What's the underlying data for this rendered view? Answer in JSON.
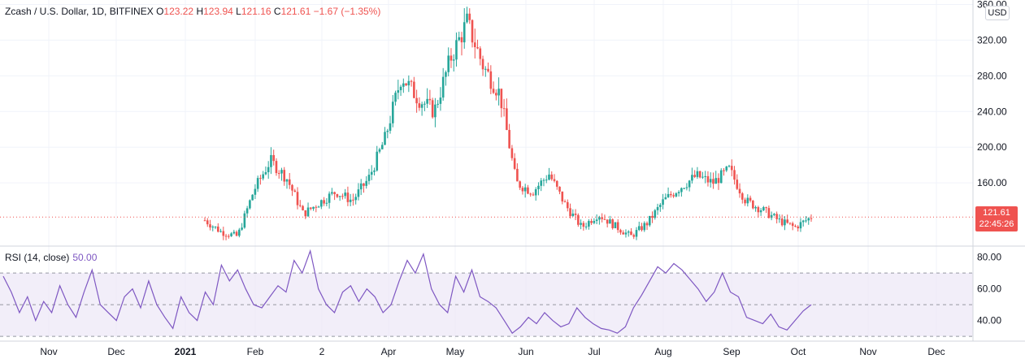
{
  "header": {
    "symbol": "Zcash / U.S. Dollar, 1D, BITFINEX",
    "open_label": "O",
    "open": "123.22",
    "high_label": "H",
    "high": "123.94",
    "low_label": "L",
    "low": "121.16",
    "close_label": "C",
    "close": "121.61",
    "change": "−1.67 (−1.35%)"
  },
  "currency": "USD",
  "last_price": "121.61",
  "countdown": "22:45:26",
  "rsi": {
    "title": "RSI (14, close)",
    "value": "50.00"
  },
  "colors": {
    "up": "#26a69a",
    "down": "#ef5350",
    "rsi": "#7e57c2",
    "rsi_band": "#ede7f6",
    "axis_text": "#131722"
  },
  "chart_data": [
    {
      "type": "candlestick",
      "title": "Zcash / U.S. Dollar, 1D, BITFINEX",
      "x_tick_labels": [
        "Nov",
        "Dec",
        "2021",
        "Feb",
        "2",
        "Apr",
        "May",
        "Jun",
        "Jul",
        "Aug",
        "Sep",
        "Oct",
        "Nov",
        "Dec"
      ],
      "y_ticks": [
        160,
        200,
        240,
        280,
        320,
        360
      ],
      "y_tick_labels": [
        "160.00",
        "200.00",
        "240.00",
        "280.00",
        "320.00",
        "360.00"
      ],
      "ylim": [
        90,
        365
      ],
      "series_close": [
        {
          "month": "Jan",
          "close": 118
        },
        {
          "month": "Jan",
          "close": 105
        },
        {
          "month": "Feb",
          "close": 100
        },
        {
          "month": "Feb",
          "close": 152
        },
        {
          "month": "Feb",
          "close": 185
        },
        {
          "month": "Feb",
          "close": 165
        },
        {
          "month": "Mar",
          "close": 125
        },
        {
          "month": "Mar",
          "close": 138
        },
        {
          "month": "Mar",
          "close": 150
        },
        {
          "month": "Mar",
          "close": 140
        },
        {
          "month": "Apr",
          "close": 165
        },
        {
          "month": "Apr",
          "close": 210
        },
        {
          "month": "Apr",
          "close": 280
        },
        {
          "month": "Apr",
          "close": 255
        },
        {
          "month": "Apr",
          "close": 240
        },
        {
          "month": "May",
          "close": 300
        },
        {
          "month": "May",
          "close": 340
        },
        {
          "month": "May",
          "close": 290
        },
        {
          "month": "May",
          "close": 260
        },
        {
          "month": "May",
          "close": 160
        },
        {
          "month": "Jun",
          "close": 150
        },
        {
          "month": "Jun",
          "close": 170
        },
        {
          "month": "Jun",
          "close": 135
        },
        {
          "month": "Jul",
          "close": 110
        },
        {
          "month": "Jul",
          "close": 125
        },
        {
          "month": "Jul",
          "close": 112
        },
        {
          "month": "Jul",
          "close": 100
        },
        {
          "month": "Aug",
          "close": 115
        },
        {
          "month": "Aug",
          "close": 140
        },
        {
          "month": "Aug",
          "close": 155
        },
        {
          "month": "Aug",
          "close": 168
        },
        {
          "month": "Sep",
          "close": 160
        },
        {
          "month": "Sep",
          "close": 175
        },
        {
          "month": "Sep",
          "close": 140
        },
        {
          "month": "Sep",
          "close": 130
        },
        {
          "month": "Sep",
          "close": 118
        },
        {
          "month": "Oct",
          "close": 110
        },
        {
          "month": "Oct",
          "close": 121.61
        }
      ]
    },
    {
      "type": "line",
      "title": "RSI (14, close)",
      "y_ticks": [
        40,
        60,
        80
      ],
      "y_tick_labels": [
        "40.00",
        "60.00",
        "80.00"
      ],
      "ylim": [
        28,
        86
      ],
      "band": [
        30,
        70
      ],
      "midline": 50,
      "values": [
        68,
        58,
        45,
        55,
        40,
        52,
        45,
        62,
        50,
        42,
        58,
        72,
        50,
        45,
        40,
        55,
        60,
        48,
        65,
        50,
        42,
        35,
        55,
        45,
        40,
        58,
        50,
        75,
        65,
        72,
        60,
        50,
        48,
        55,
        62,
        58,
        78,
        70,
        84,
        60,
        50,
        45,
        58,
        62,
        52,
        60,
        55,
        45,
        50,
        65,
        78,
        70,
        82,
        60,
        50,
        45,
        68,
        58,
        72,
        55,
        52,
        48,
        40,
        32,
        36,
        42,
        38,
        45,
        40,
        36,
        38,
        48,
        42,
        38,
        35,
        34,
        32,
        36,
        48,
        56,
        65,
        74,
        70,
        76,
        72,
        66,
        60,
        52,
        58,
        70,
        58,
        55,
        42,
        40,
        38,
        44,
        36,
        34,
        40,
        46,
        50
      ]
    }
  ]
}
